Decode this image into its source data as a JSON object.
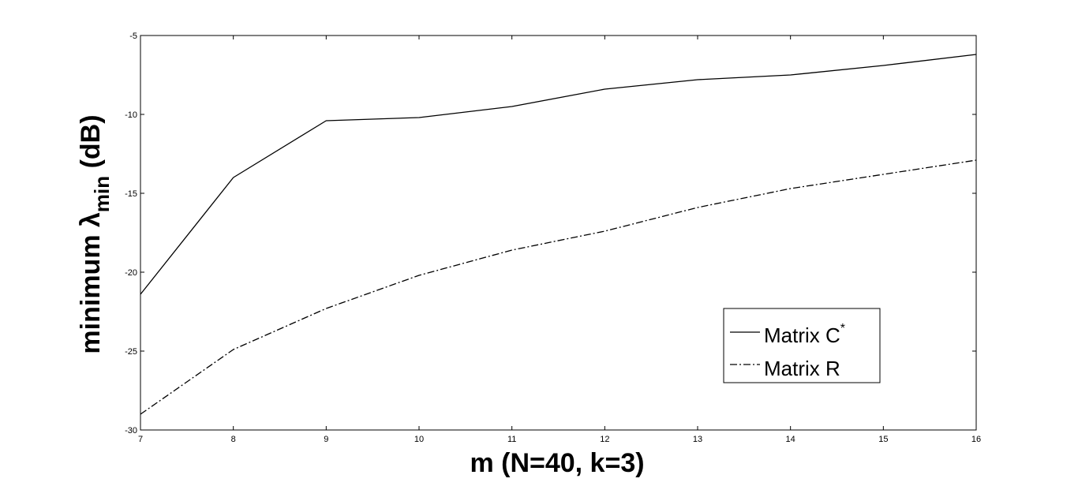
{
  "chart_data": {
    "type": "line",
    "title": "",
    "xlabel": "m (N=40, k=3)",
    "ylabel": {
      "main": "minimum λ",
      "subscript": "min",
      "suffix": " (dB)"
    },
    "xlim": [
      7,
      16
    ],
    "ylim": [
      -30,
      -5
    ],
    "x_ticks": [
      7,
      8,
      9,
      10,
      11,
      12,
      13,
      14,
      15,
      16
    ],
    "y_ticks": [
      -5,
      -10,
      -15,
      -20,
      -25,
      -30
    ],
    "grid": false,
    "legend_position": "lower-right",
    "x": [
      7,
      8,
      9,
      10,
      11,
      12,
      13,
      14,
      15,
      16
    ],
    "series": [
      {
        "name": "Matrix C",
        "name_superscript": "*",
        "line_style": "solid",
        "color": "#000000",
        "values": [
          -21.4,
          -14.0,
          -10.4,
          -10.2,
          -9.5,
          -8.4,
          -7.8,
          -7.5,
          -6.9,
          -6.2
        ]
      },
      {
        "name": "Matrix R",
        "line_style": "dash-dot",
        "color": "#000000",
        "values": [
          -29.0,
          -24.9,
          -22.3,
          -20.2,
          -18.6,
          -17.4,
          -15.9,
          -14.7,
          -13.8,
          -12.9
        ]
      }
    ]
  }
}
